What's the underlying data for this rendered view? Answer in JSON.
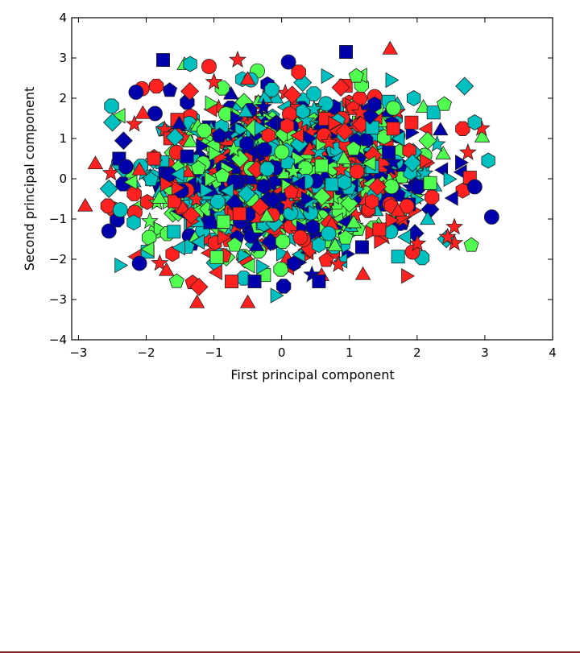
{
  "chart_data": {
    "type": "scatter",
    "title": "",
    "xlabel": "First principal component",
    "ylabel": "Second principal component",
    "xlim": [
      -3.1,
      4
    ],
    "ylim": [
      -4,
      4
    ],
    "xticks": [
      "−3",
      "−2",
      "−1",
      "0",
      "1",
      "2",
      "3",
      "4"
    ],
    "yticks": [
      "4",
      "3",
      "2",
      "1",
      "0",
      "−1",
      "−2",
      "−3",
      "−4"
    ],
    "grid": false,
    "legend": "none",
    "colors": [
      "#0000aa",
      "#ff2020",
      "#50ff50",
      "#00c0c0"
    ],
    "markers": [
      "circle",
      "triangle-up",
      "triangle-left",
      "triangle-right",
      "square",
      "diamond",
      "pentagon",
      "hexagon",
      "star",
      "octagon"
    ],
    "highlighted_points": [
      {
        "x": 1.6,
        "y": 3.2,
        "marker": "triangle-up",
        "color": "#ff2020"
      },
      {
        "x": 0.95,
        "y": 3.15,
        "marker": "square",
        "color": "#0000aa"
      },
      {
        "x": -1.75,
        "y": 2.95,
        "marker": "square",
        "color": "#0000aa"
      },
      {
        "x": -1.35,
        "y": 2.85,
        "marker": "hexagon",
        "color": "#00c0c0"
      },
      {
        "x": -0.65,
        "y": 2.95,
        "marker": "star",
        "color": "#ff2020"
      },
      {
        "x": 0.1,
        "y": 2.9,
        "marker": "circle",
        "color": "#0000aa"
      },
      {
        "x": 0.25,
        "y": 2.65,
        "marker": "octagon",
        "color": "#ff2020"
      },
      {
        "x": 2.7,
        "y": 2.3,
        "marker": "diamond",
        "color": "#00c0c0"
      },
      {
        "x": 2.4,
        "y": 1.85,
        "marker": "pentagon",
        "color": "#50ff50"
      },
      {
        "x": 1.6,
        "y": 2.45,
        "marker": "triangle-right",
        "color": "#00c0c0"
      },
      {
        "x": -2.5,
        "y": 1.4,
        "marker": "diamond",
        "color": "#00c0c0"
      },
      {
        "x": -2.75,
        "y": 0.35,
        "marker": "triangle-up",
        "color": "#ff2020"
      },
      {
        "x": -2.9,
        "y": -0.7,
        "marker": "triangle-up",
        "color": "#ff2020"
      },
      {
        "x": -2.55,
        "y": -0.25,
        "marker": "diamond",
        "color": "#00c0c0"
      },
      {
        "x": -2.55,
        "y": -1.3,
        "marker": "circle",
        "color": "#0000aa"
      },
      {
        "x": -2.4,
        "y": -2.15,
        "marker": "triangle-right",
        "color": "#00c0c0"
      },
      {
        "x": -2.1,
        "y": -2.1,
        "marker": "circle",
        "color": "#0000aa"
      },
      {
        "x": -1.55,
        "y": -2.55,
        "marker": "pentagon",
        "color": "#50ff50"
      },
      {
        "x": -1.25,
        "y": -3.1,
        "marker": "triangle-up",
        "color": "#ff2020"
      },
      {
        "x": -0.5,
        "y": -3.1,
        "marker": "triangle-up",
        "color": "#ff2020"
      },
      {
        "x": -0.1,
        "y": -2.9,
        "marker": "triangle-right",
        "color": "#00c0c0"
      },
      {
        "x": -0.4,
        "y": -2.55,
        "marker": "square",
        "color": "#0000aa"
      },
      {
        "x": 0.55,
        "y": -2.55,
        "marker": "square",
        "color": "#0000aa"
      },
      {
        "x": 1.2,
        "y": -2.4,
        "marker": "triangle-up",
        "color": "#ff2020"
      },
      {
        "x": 3.1,
        "y": -0.95,
        "marker": "circle",
        "color": "#0000aa"
      },
      {
        "x": 2.8,
        "y": -1.65,
        "marker": "pentagon",
        "color": "#50ff50"
      },
      {
        "x": 2.55,
        "y": -1.2,
        "marker": "star",
        "color": "#ff2020"
      },
      {
        "x": 2.55,
        "y": -1.6,
        "marker": "star",
        "color": "#ff2020"
      },
      {
        "x": 2.45,
        "y": -1.45,
        "marker": "star",
        "color": "#ff2020"
      },
      {
        "x": 2.95,
        "y": 1.25,
        "marker": "star",
        "color": "#ff2020"
      },
      {
        "x": 2.85,
        "y": 1.4,
        "marker": "hexagon",
        "color": "#00c0c0"
      },
      {
        "x": 3.05,
        "y": 0.45,
        "marker": "hexagon",
        "color": "#00c0c0"
      },
      {
        "x": 2.75,
        "y": 0.65,
        "marker": "star",
        "color": "#ff2020"
      },
      {
        "x": 2.85,
        "y": -0.2,
        "marker": "circle",
        "color": "#0000aa"
      },
      {
        "x": -2.15,
        "y": 2.15,
        "marker": "circle",
        "color": "#0000aa"
      },
      {
        "x": -1.85,
        "y": 2.3,
        "marker": "octagon",
        "color": "#ff2020"
      },
      {
        "x": -2.05,
        "y": 1.6,
        "marker": "triangle-up",
        "color": "#ff2020"
      },
      {
        "x": -1.95,
        "y": -1.75,
        "marker": "triangle-left",
        "color": "#50ff50"
      },
      {
        "x": -1.8,
        "y": -2.1,
        "marker": "star",
        "color": "#ff2020"
      },
      {
        "x": -1.7,
        "y": -2.3,
        "marker": "triangle-up",
        "color": "#ff2020"
      },
      {
        "x": 0.65,
        "y": 2.55,
        "marker": "triangle-right",
        "color": "#00c0c0"
      },
      {
        "x": 1.1,
        "y": 2.55,
        "marker": "pentagon",
        "color": "#50ff50"
      },
      {
        "x": -0.5,
        "y": 2.45,
        "marker": "triangle-up",
        "color": "#ff2020"
      },
      {
        "x": -1.0,
        "y": 2.4,
        "marker": "star",
        "color": "#ff2020"
      },
      {
        "x": 1.95,
        "y": 2.0,
        "marker": "hexagon",
        "color": "#00c0c0"
      },
      {
        "x": -2.4,
        "y": 0.5,
        "marker": "square",
        "color": "#0000aa"
      },
      {
        "x": -2.1,
        "y": 0.2,
        "marker": "triangle-up",
        "color": "#ff2020"
      },
      {
        "x": -2.3,
        "y": 0.3,
        "marker": "circle",
        "color": "#0000aa"
      }
    ]
  }
}
